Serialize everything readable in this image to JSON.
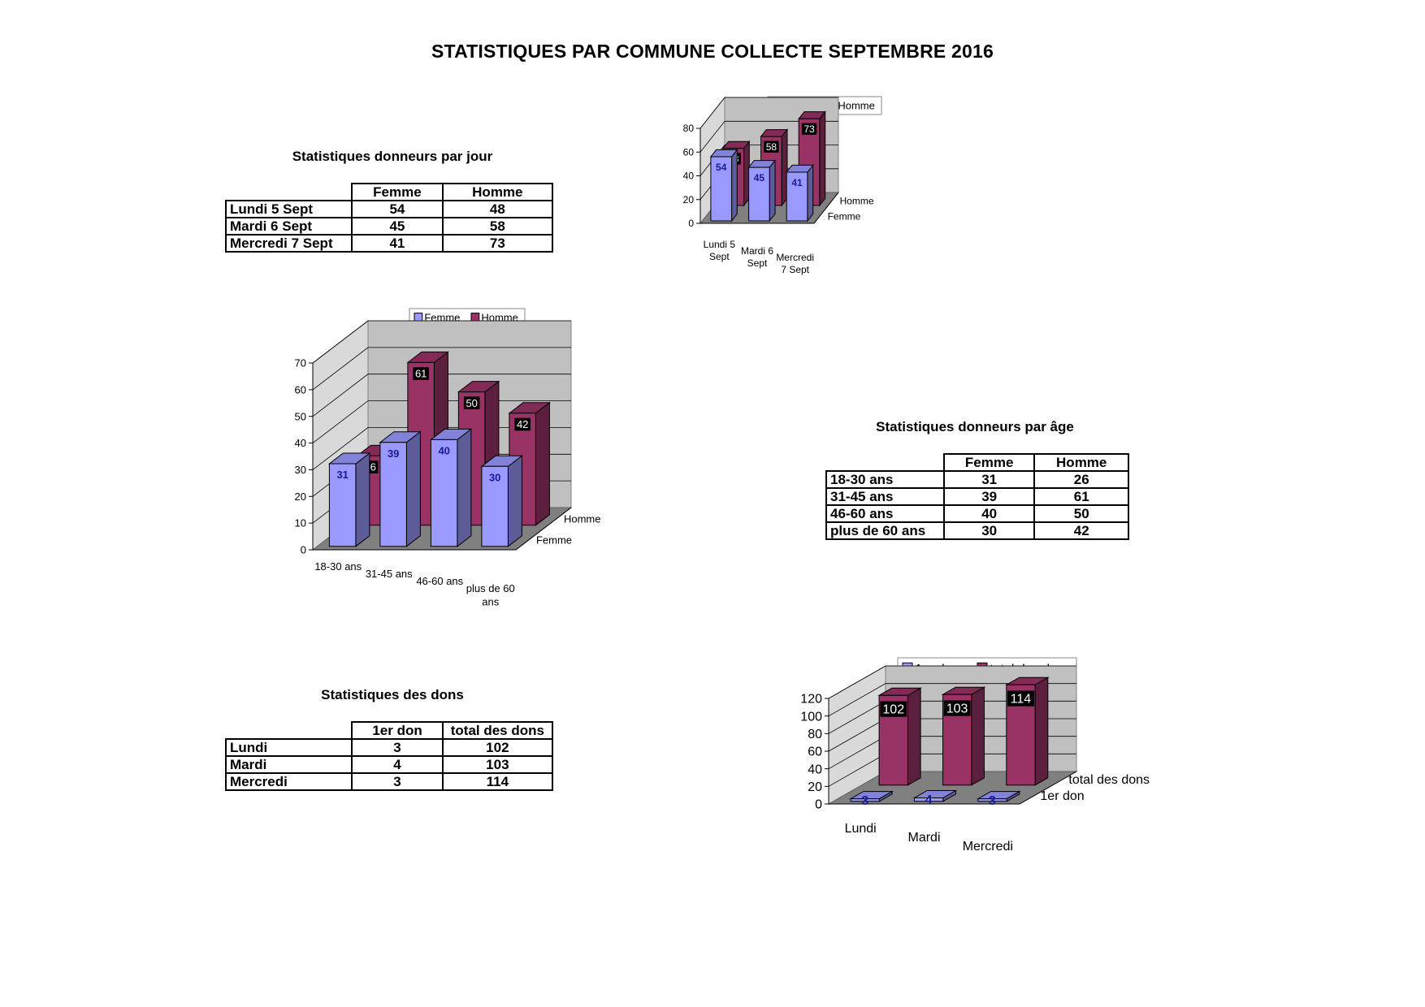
{
  "page": {
    "title": "STATISTIQUES PAR COMMUNE COLLECTE SEPTEMBRE 2016"
  },
  "tables": [
    {
      "title": "Statistiques donneurs par jour",
      "columns": [
        "Femme",
        "Homme"
      ],
      "rows": [
        {
          "label": "Lundi 5 Sept",
          "values": [
            "54",
            "48"
          ]
        },
        {
          "label": "Mardi 6 Sept",
          "values": [
            "45",
            "58"
          ]
        },
        {
          "label": "Mercredi 7 Sept",
          "values": [
            "41",
            "73"
          ]
        }
      ]
    },
    {
      "title": "Statistiques donneurs par âge",
      "columns": [
        "Femme",
        "Homme"
      ],
      "rows": [
        {
          "label": "18-30 ans",
          "values": [
            "31",
            "26"
          ]
        },
        {
          "label": "31-45 ans",
          "values": [
            "39",
            "61"
          ]
        },
        {
          "label": "46-60 ans",
          "values": [
            "40",
            "50"
          ]
        },
        {
          "label": "plus de 60 ans",
          "values": [
            "30",
            "42"
          ]
        }
      ]
    },
    {
      "title": "Statistiques des dons",
      "columns": [
        "1er don",
        "total des dons"
      ],
      "rows": [
        {
          "label": "Lundi",
          "values": [
            "3",
            "102"
          ]
        },
        {
          "label": "Mardi",
          "values": [
            "4",
            "103"
          ]
        },
        {
          "label": "Mercredi",
          "values": [
            "3",
            "114"
          ]
        }
      ]
    }
  ],
  "colors": {
    "series1": "#9999ff",
    "series2": "#993366",
    "wall": "#c0c0c0",
    "floor": "#808080"
  },
  "chart_data": [
    {
      "type": "bar",
      "categories": [
        "Lundi 5 Sept",
        "Mardi 6 Sept",
        "Mercredi 7 Sept"
      ],
      "category_lines": [
        [
          "Lundi 5",
          "Sept"
        ],
        [
          "Mardi 6",
          "Sept"
        ],
        [
          "Mercredi",
          "7 Sept"
        ]
      ],
      "series": [
        {
          "name": "Femme",
          "values": [
            54,
            45,
            41
          ]
        },
        {
          "name": "Homme",
          "values": [
            48,
            58,
            73
          ]
        }
      ],
      "ylim": [
        0,
        80
      ],
      "yticks": [
        0,
        20,
        40,
        60,
        80
      ],
      "depth_labels": [
        "Femme",
        "Homme"
      ],
      "legend": "top",
      "style": "3d"
    },
    {
      "type": "bar",
      "categories": [
        "18-30 ans",
        "31-45 ans",
        "46-60 ans",
        "plus de 60 ans"
      ],
      "category_lines": [
        [
          "18-30 ans"
        ],
        [
          "31-45 ans"
        ],
        [
          "46-60 ans"
        ],
        [
          "plus de 60",
          "ans"
        ]
      ],
      "series": [
        {
          "name": "Femme",
          "values": [
            31,
            39,
            40,
            30
          ]
        },
        {
          "name": "Homme",
          "values": [
            26,
            61,
            50,
            42
          ]
        }
      ],
      "ylim": [
        0,
        70
      ],
      "yticks": [
        0,
        10,
        20,
        30,
        40,
        50,
        60,
        70
      ],
      "depth_labels": [
        "Femme",
        "Homme"
      ],
      "legend": "top",
      "style": "3d"
    },
    {
      "type": "bar",
      "categories": [
        "Lundi",
        "Mardi",
        "Mercredi"
      ],
      "category_lines": [
        [
          "Lundi"
        ],
        [
          "Mardi"
        ],
        [
          "Mercredi"
        ]
      ],
      "series": [
        {
          "name": "1er don",
          "values": [
            3,
            4,
            3
          ]
        },
        {
          "name": "total des dons",
          "values": [
            102,
            103,
            114
          ]
        }
      ],
      "ylim": [
        0,
        120
      ],
      "yticks": [
        0,
        20,
        40,
        60,
        80,
        100,
        120
      ],
      "depth_labels": [
        "1er don",
        "total des dons"
      ],
      "legend": "top",
      "style": "3d"
    }
  ]
}
